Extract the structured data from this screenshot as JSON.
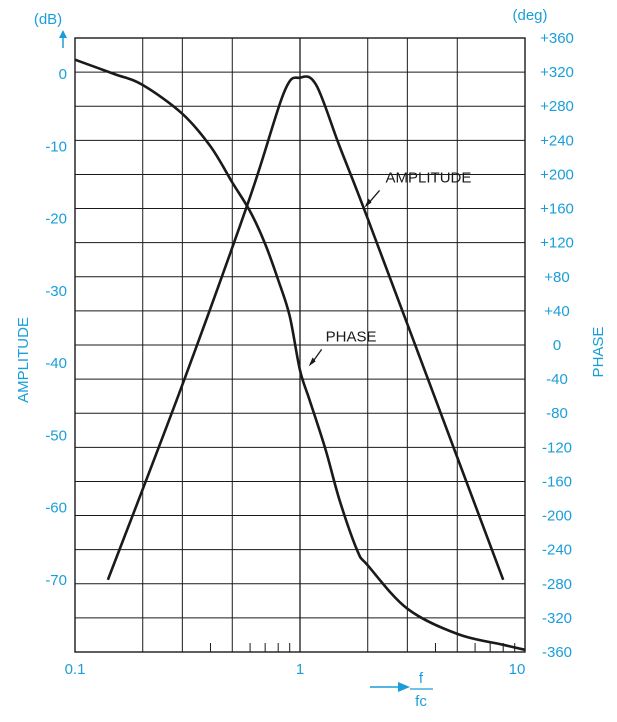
{
  "chart_data": {
    "type": "line",
    "x_scale": "log",
    "xlim": [
      0.1,
      10
    ],
    "x_ticks": [
      "0.1",
      "1",
      "10"
    ],
    "x_label": {
      "numerator": "f",
      "denominator": "fc"
    },
    "y_left": {
      "title": "AMPLITUDE",
      "unit": "(dB)",
      "ylim": [
        -80,
        5
      ],
      "ticks": [
        0,
        -10,
        -20,
        -30,
        -40,
        -50,
        -60,
        -70
      ]
    },
    "y_right": {
      "title": "PHASE",
      "unit": "(deg)",
      "ylim": [
        -360,
        360
      ],
      "ticks": [
        "+360",
        "+320",
        "+280",
        "+240",
        "+200",
        "+160",
        "+120",
        "+80",
        "+40",
        "0",
        "-40",
        "-80",
        "-120",
        "-160",
        "-200",
        "-240",
        "-280",
        "-320",
        "-360"
      ]
    },
    "grid": true,
    "series": [
      {
        "name": "AMPLITUDE",
        "axis": "left",
        "x": [
          0.14,
          0.3,
          0.6,
          0.85,
          1.0,
          1.18,
          1.5,
          2.0,
          4.0,
          8.0
        ],
        "y": [
          -70,
          -43,
          -17,
          -2.5,
          -0.5,
          -1.5,
          -10,
          -20,
          -45,
          -70
        ]
      },
      {
        "name": "PHASE",
        "axis": "left",
        "x": [
          0.1,
          0.15,
          0.2,
          0.3,
          0.4,
          0.5,
          0.6,
          0.7,
          0.8,
          0.9,
          1.0,
          1.1,
          1.3,
          1.5,
          1.8,
          2.0,
          3.0,
          5.0,
          8.0,
          10.0
        ],
        "y": [
          2,
          0,
          -1.5,
          -5.5,
          -10,
          -15,
          -19,
          -23.5,
          -28.5,
          -33.5,
          -41,
          -45,
          -52,
          -59,
          -66,
          -68,
          -74,
          -77.5,
          -79,
          -79.7
        ]
      }
    ],
    "annotations": [
      {
        "text": "AMPLITUDE",
        "x": 2.4,
        "y": -15
      },
      {
        "text": "PHASE",
        "x": 1.3,
        "y": -37
      }
    ]
  }
}
